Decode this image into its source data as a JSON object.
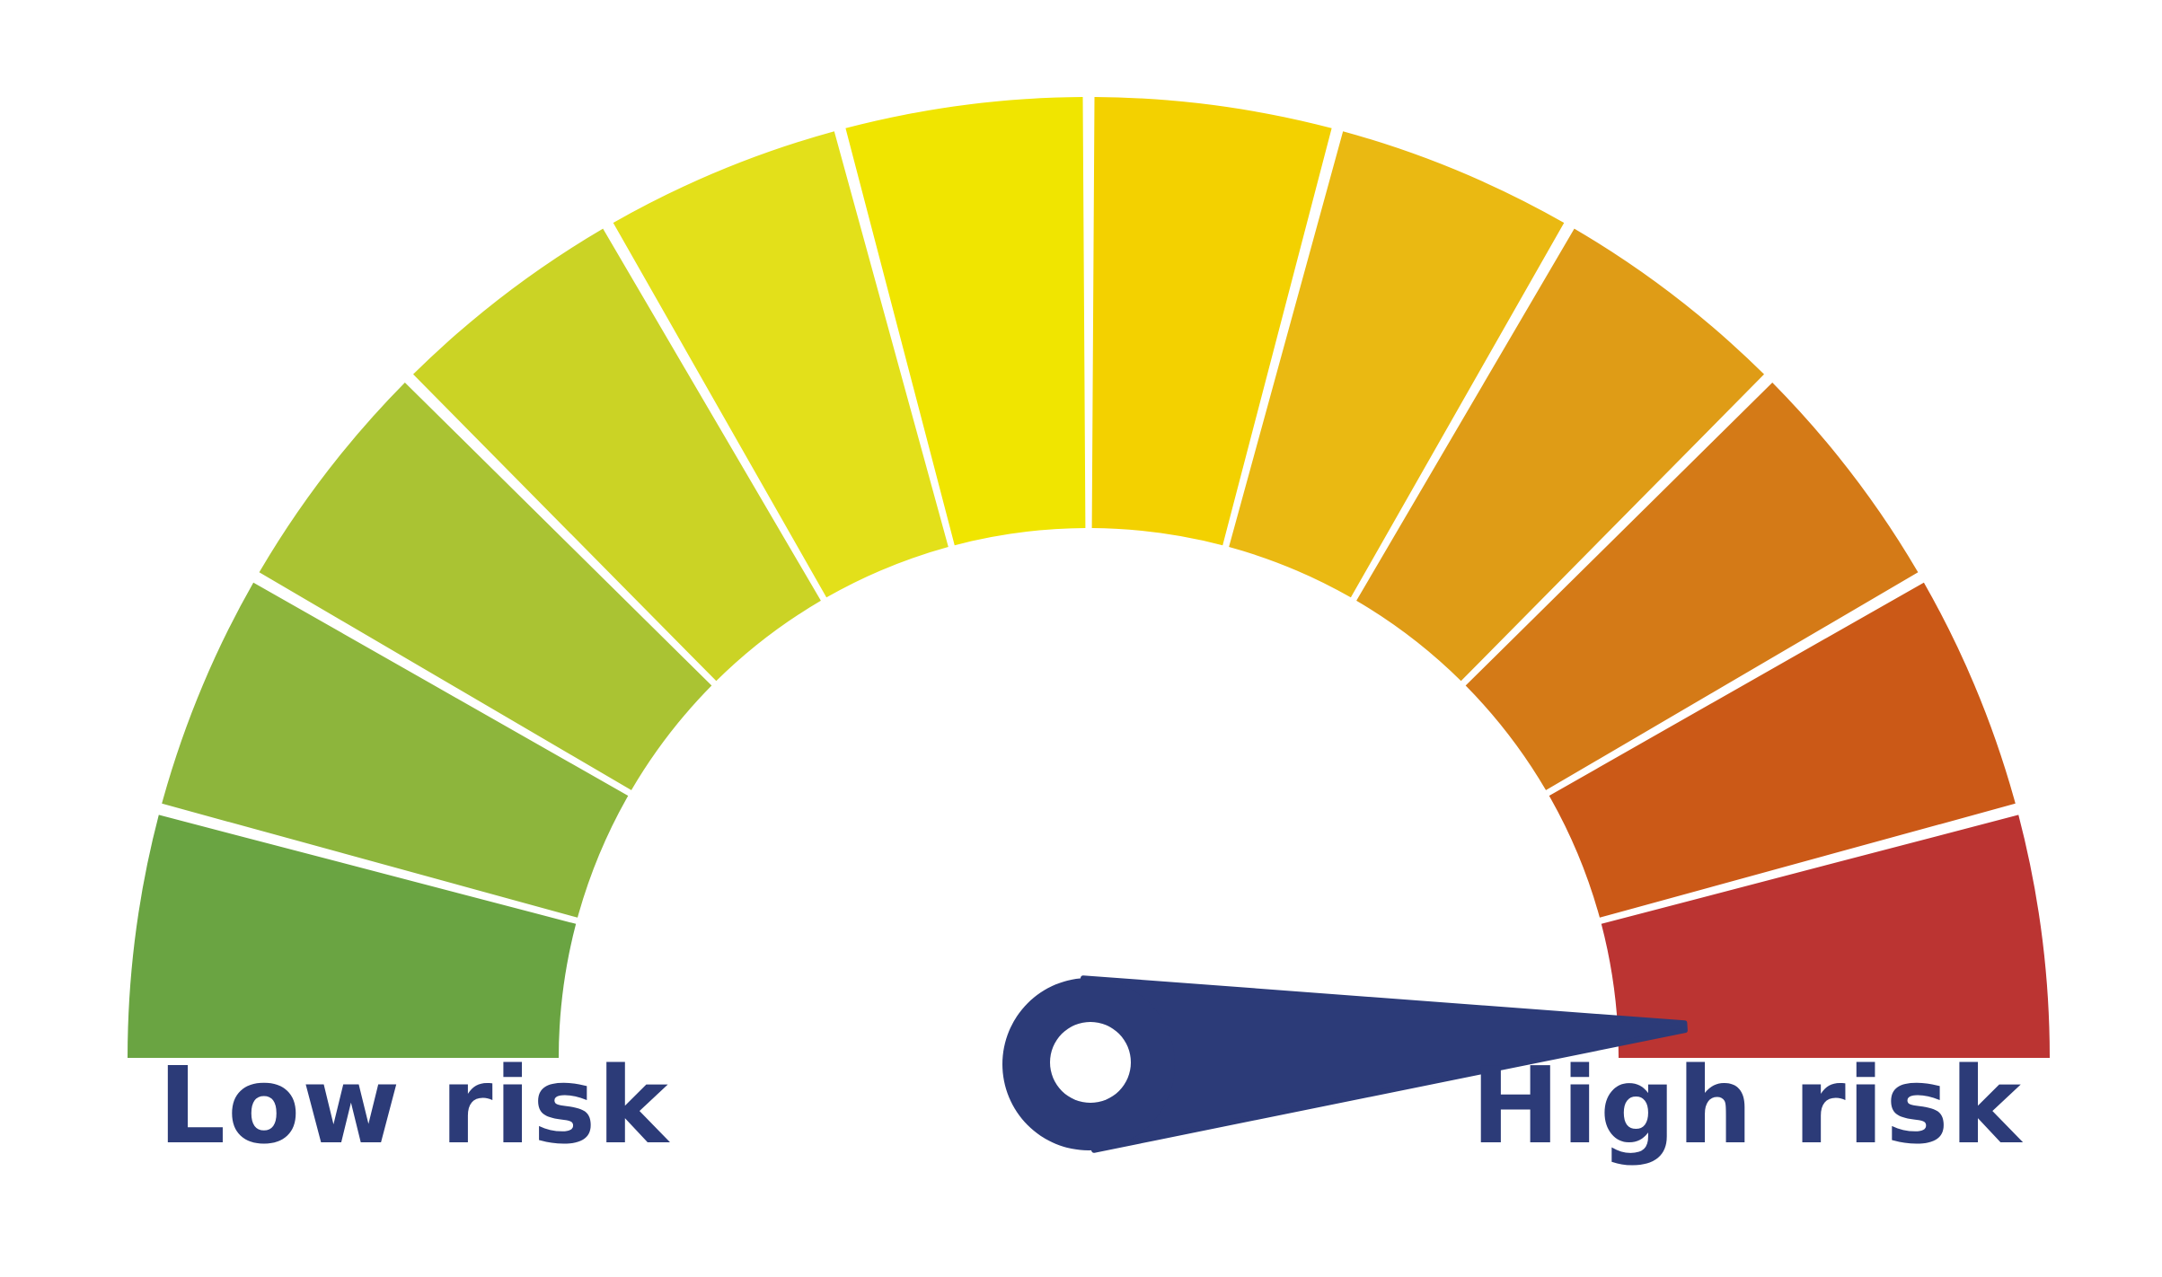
{
  "gauge": {
    "segments": [
      {
        "color": "#6aa442"
      },
      {
        "color": "#8db53c"
      },
      {
        "color": "#aac333"
      },
      {
        "color": "#cbd325"
      },
      {
        "color": "#e3e01a"
      },
      {
        "color": "#f0e500"
      },
      {
        "color": "#f3d100"
      },
      {
        "color": "#eab912"
      },
      {
        "color": "#df9c16"
      },
      {
        "color": "#d47a17"
      },
      {
        "color": "#cb5917"
      },
      {
        "color": "#bb3432"
      }
    ],
    "needle_color": "#2c3b78",
    "needle_level": 0.98,
    "low_label": "Low risk",
    "high_label": "High risk"
  }
}
